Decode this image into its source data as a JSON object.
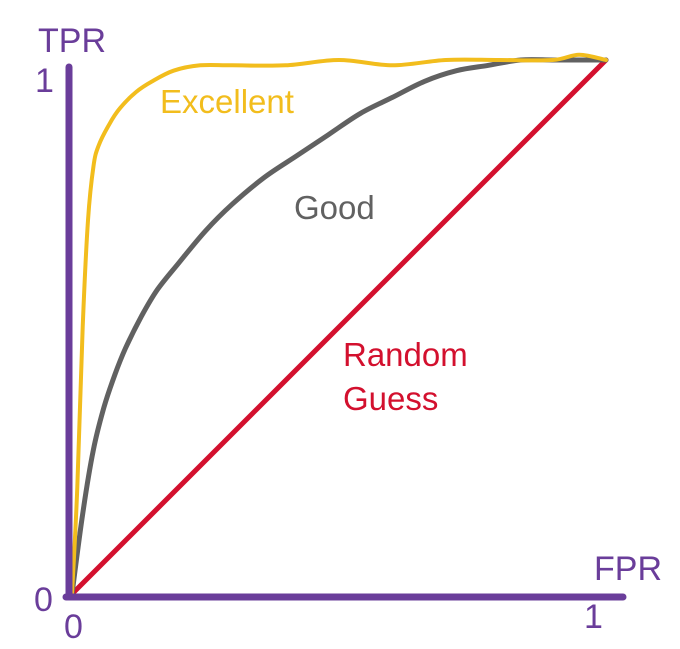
{
  "colors": {
    "axis": "#6a3d9a",
    "excellent": "#f2bd1d",
    "good": "#616161",
    "random": "#d3102e",
    "background": "#ffffff"
  },
  "chart_data": {
    "type": "line",
    "title": "",
    "xlabel": "FPR",
    "ylabel": "TPR",
    "xlim": [
      0,
      1
    ],
    "ylim": [
      0,
      1
    ],
    "x_ticks": [
      "0",
      "1"
    ],
    "y_ticks": [
      "0",
      "1"
    ],
    "grid": false,
    "legend": "none",
    "curve_labels": {
      "excellent": "Excellent",
      "good": "Good",
      "random": [
        "Random",
        "Guess"
      ]
    },
    "series": [
      {
        "key": "excellent",
        "name": "Excellent",
        "color": "#f2bd1d",
        "x": [
          0.0,
          0.01,
          0.02,
          0.03,
          0.04,
          0.05,
          0.07,
          0.09,
          0.12,
          0.15,
          0.19,
          0.24,
          0.3,
          0.4,
          0.5,
          0.6,
          0.7,
          0.8,
          0.9,
          0.95,
          1.0
        ],
        "y": [
          0.0,
          0.2,
          0.5,
          0.7,
          0.8,
          0.84,
          0.88,
          0.91,
          0.94,
          0.96,
          0.98,
          0.99,
          0.99,
          0.99,
          1.0,
          0.99,
          1.0,
          1.0,
          1.0,
          1.01,
          1.0
        ]
      },
      {
        "key": "good",
        "name": "Good",
        "color": "#616161",
        "x": [
          0.0,
          0.02,
          0.04,
          0.06,
          0.08,
          0.1,
          0.13,
          0.16,
          0.2,
          0.25,
          0.3,
          0.36,
          0.42,
          0.48,
          0.54,
          0.6,
          0.66,
          0.72,
          0.78,
          0.84,
          0.9,
          0.95,
          1.0
        ],
        "y": [
          0.0,
          0.15,
          0.27,
          0.35,
          0.41,
          0.46,
          0.52,
          0.57,
          0.62,
          0.68,
          0.73,
          0.78,
          0.82,
          0.86,
          0.9,
          0.93,
          0.96,
          0.98,
          0.99,
          1.0,
          1.0,
          1.0,
          1.0
        ]
      },
      {
        "key": "random",
        "name": "Random Guess",
        "color": "#d3102e",
        "x": [
          0.0,
          1.0
        ],
        "y": [
          0.0,
          1.0
        ]
      }
    ]
  }
}
